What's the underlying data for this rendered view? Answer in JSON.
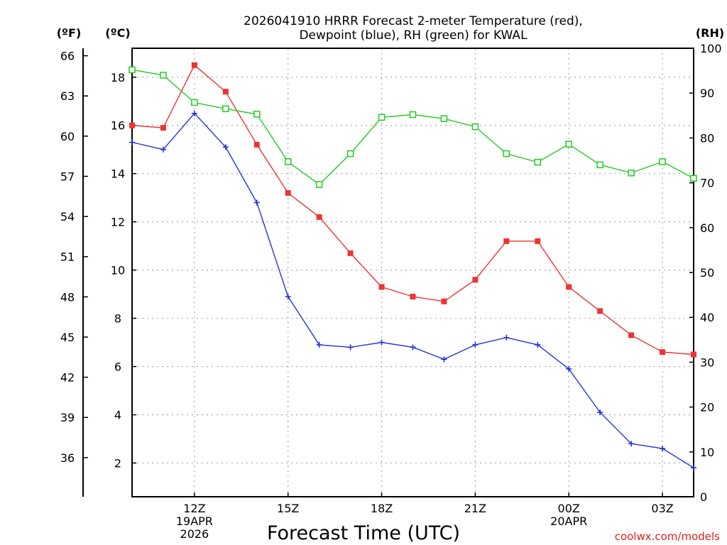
{
  "chart_data": {
    "type": "line",
    "title_line1": "2026041910 HRRR Forecast 2-meter Temperature (red),",
    "title_line2": "Dewpoint (blue), RH (green) for KWAL",
    "unit_f": "(ºF)",
    "unit_c": "(ºC)",
    "unit_rh": "(RH)",
    "xlabel": "Forecast Time (UTC)",
    "credit": "coolwx.com/models",
    "xlim": [
      10,
      28
    ],
    "ylim_c": [
      0.6,
      19.2
    ],
    "ylim_rh": [
      0,
      100
    ],
    "f_ticks": [
      36,
      39,
      42,
      45,
      48,
      51,
      54,
      57,
      60,
      63,
      66
    ],
    "c_ticks": [
      2,
      4,
      6,
      8,
      10,
      12,
      14,
      16,
      18
    ],
    "rh_ticks": [
      0,
      10,
      20,
      30,
      40,
      50,
      60,
      70,
      80,
      90,
      100
    ],
    "x_ticks": [
      {
        "x": 12,
        "lines": [
          "12Z",
          "19APR",
          "2026"
        ]
      },
      {
        "x": 15,
        "lines": [
          "15Z"
        ]
      },
      {
        "x": 18,
        "lines": [
          "18Z"
        ]
      },
      {
        "x": 21,
        "lines": [
          "21Z"
        ]
      },
      {
        "x": 24,
        "lines": [
          "00Z",
          "20APR"
        ]
      },
      {
        "x": 27,
        "lines": [
          "03Z"
        ]
      }
    ],
    "x": [
      10,
      11,
      12,
      13,
      14,
      15,
      16,
      17,
      18,
      19,
      20,
      21,
      22,
      23,
      24,
      25,
      26,
      27,
      28
    ],
    "series": [
      {
        "name": "Temperature",
        "unit": "C",
        "color": "#ee3333",
        "marker": "filled-square",
        "values": [
          16.0,
          15.9,
          18.5,
          17.4,
          15.2,
          13.2,
          12.2,
          10.7,
          9.3,
          8.9,
          8.7,
          9.6,
          11.2,
          11.2,
          9.3,
          8.3,
          7.3,
          6.6,
          6.5
        ]
      },
      {
        "name": "Dewpoint",
        "unit": "C",
        "color": "#2233dd",
        "marker": "plus",
        "values": [
          15.3,
          15.0,
          16.5,
          15.1,
          12.8,
          8.9,
          6.9,
          6.8,
          7.0,
          6.8,
          6.3,
          6.9,
          7.2,
          6.9,
          5.9,
          4.1,
          2.8,
          2.6,
          1.8
        ]
      },
      {
        "name": "RH",
        "unit": "%",
        "color": "#22cc22",
        "marker": "open-square",
        "values": [
          95.2,
          94.0,
          87.9,
          86.5,
          85.3,
          74.7,
          69.6,
          76.5,
          84.6,
          85.2,
          84.3,
          82.5,
          76.5,
          74.6,
          78.6,
          74.0,
          72.2,
          74.7,
          71.0
        ]
      }
    ]
  }
}
